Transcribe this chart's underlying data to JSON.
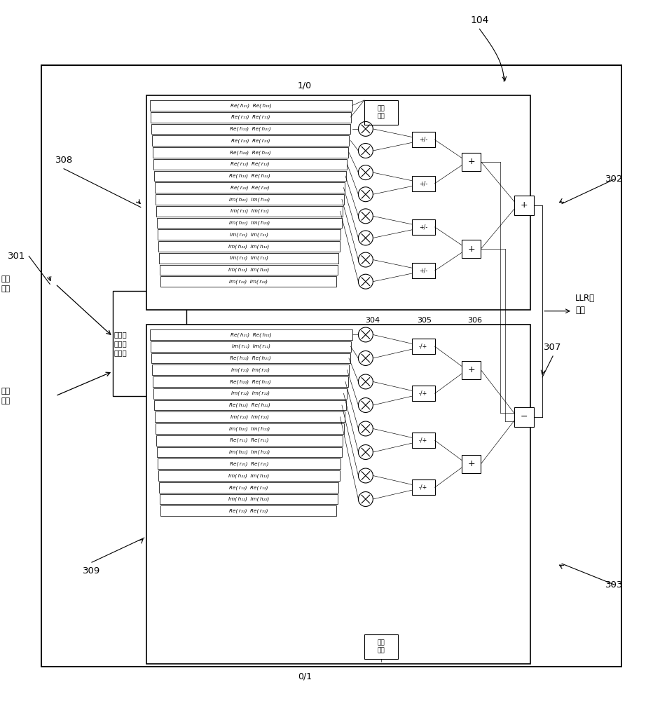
{
  "bg_color": "#ffffff",
  "label_104": "104",
  "label_301": "301",
  "label_302": "302",
  "label_303": "303",
  "label_304": "304",
  "label_305": "305",
  "label_306": "306",
  "label_307": "307",
  "label_308": "308",
  "label_309": "309",
  "text_jidai": "基带\n信号",
  "text_xindao": "信道\n参数",
  "text_yunsuan": "运算单\n元复用\n控制器",
  "text_llr": "LLR运\n算器",
  "text_yanshi": "延时\n单元",
  "text_10": "1/0",
  "text_01": "0/1",
  "upper_rows": [
    "Re( h₂₁)  Re( h₁₁)",
    "Re( r₁₁)  Re( r₁₁)",
    "Re( h₁₁)  Re( h₂₁)",
    "Re( r₂₁)  Re( r₂₁)",
    "Re( h₂₂)  Re( h₁₂)",
    "Re( r₁₂)  Re( r₁₂)",
    "Re( h₁₂)  Re( h₂₂)",
    "Re( r₂₂)  Re( r₂₂)",
    "Im( h₂₁)  Im( h₁₁)",
    "Im( r₁₁)  Im( r₁₁)",
    "Im( h₁₁)  Im( h₂₁)",
    "Im( r₂₁)  Im( r₂₁)",
    "Im( h₂₂)  Im( h₁₂)",
    "Im( r₁₂)  Im( r₁₂)",
    "Im( h₁₂)  Im( h₂₂)",
    "Im( r₂₂)  Im( r₂₂)"
  ],
  "lower_rows": [
    "Re( h₂₁)  Re( h₁₁)",
    "Im( r₁₁)  Im( r₁₁)",
    "Re( h₁₁)  Re( h₂₁)",
    "Im( r₂₁)  Im( r₂₁)",
    "Re( h₂₂)  Re( h₁₂)",
    "Im( r₁₂)  Im( r₁₂)",
    "Re( h₁₂)  Re( h₂₂)",
    "Im( r₂₂)  Im( r₂₂)",
    "Im( h₂₁)  Im( h₁₁)",
    "Re( r₁₁)  Re( r₁₁)",
    "Im( h₁₁)  Im( h₂₁)",
    "Re( r₂₁)  Re( r₂₁)",
    "Im( h₂₂)  Im( h₁₂)",
    "Re( r₁₂)  Re( r₁₂)",
    "Im( h₁₂)  Im( h₂₂)",
    "Re( r₂₂)  Re( r₂₂)"
  ]
}
